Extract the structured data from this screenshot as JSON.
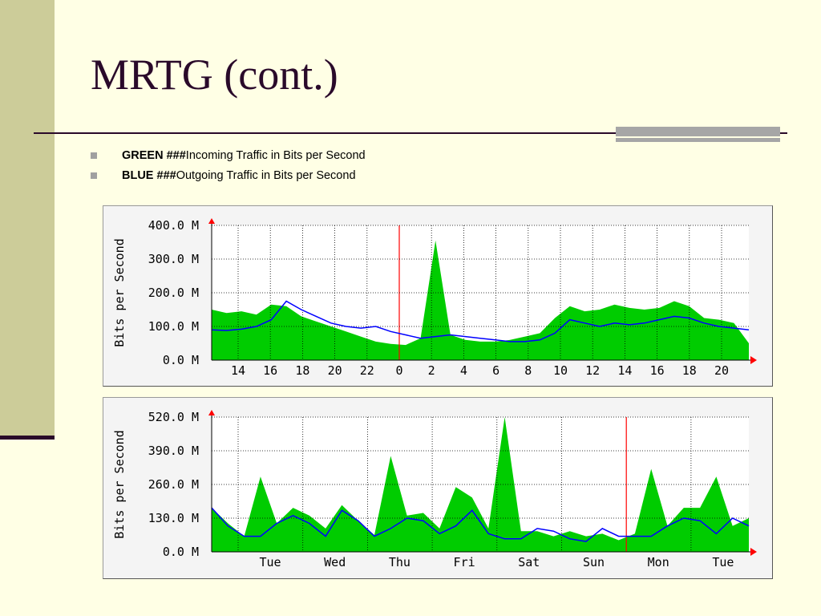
{
  "slide": {
    "title": "MRTG (cont.)",
    "bullets": [
      {
        "bold": "GREEN ###",
        "text": "Incoming Traffic in Bits per Second"
      },
      {
        "bold": "BLUE ###",
        "text": "Outgoing Traffic in Bits per Second"
      }
    ]
  },
  "colors": {
    "incoming": "#00cc00",
    "outgoing": "#0000ff",
    "marker": "#ff0000",
    "grid": "#000000",
    "accent_band": "#cccc99",
    "title_text": "#2a0a2a"
  },
  "chart_data": [
    {
      "type": "area",
      "ylabel": "Bits per Second",
      "yticks": [
        "0.0 M",
        "100.0 M",
        "200.0 M",
        "300.0 M",
        "400.0 M"
      ],
      "ylim": [
        0,
        400
      ],
      "xticks": [
        "14",
        "16",
        "18",
        "20",
        "22",
        "0",
        "2",
        "4",
        "6",
        "8",
        "10",
        "12",
        "14",
        "16",
        "18",
        "20"
      ],
      "marker_at": "0",
      "grid": true,
      "x": [
        13,
        14,
        15,
        16,
        17,
        18,
        19,
        20,
        21,
        22,
        23,
        24,
        25,
        26,
        27,
        28,
        29,
        30,
        31,
        32,
        33,
        34,
        35,
        36,
        37,
        38,
        39,
        40,
        41,
        42,
        43,
        44,
        45,
        46,
        47,
        48,
        49
      ],
      "series": [
        {
          "name": "Incoming",
          "values": [
            150,
            140,
            145,
            135,
            165,
            160,
            130,
            115,
            100,
            85,
            70,
            55,
            48,
            45,
            65,
            355,
            75,
            60,
            55,
            55,
            60,
            70,
            80,
            125,
            160,
            145,
            150,
            165,
            155,
            150,
            155,
            175,
            160,
            125,
            120,
            110,
            50
          ]
        },
        {
          "name": "Outgoing",
          "values": [
            90,
            88,
            92,
            100,
            120,
            175,
            150,
            130,
            110,
            100,
            95,
            100,
            85,
            75,
            65,
            70,
            75,
            70,
            65,
            60,
            55,
            55,
            60,
            80,
            120,
            110,
            100,
            110,
            105,
            110,
            120,
            130,
            125,
            110,
            100,
            95,
            90
          ]
        }
      ]
    },
    {
      "type": "area",
      "ylabel": "Bits per Second",
      "yticks": [
        "0.0 M",
        "130.0 M",
        "260.0 M",
        "390.0 M",
        "520.0 M"
      ],
      "ylim": [
        0,
        520
      ],
      "xticks": [
        "Tue",
        "Wed",
        "Thu",
        "Fri",
        "Sat",
        "Sun",
        "Mon",
        "Tue"
      ],
      "marker_at": "Mon",
      "grid": true,
      "x": [
        0,
        0.25,
        0.5,
        0.75,
        1,
        1.25,
        1.5,
        1.75,
        2,
        2.25,
        2.5,
        2.75,
        3,
        3.25,
        3.5,
        3.75,
        4,
        4.25,
        4.5,
        4.75,
        5,
        5.25,
        5.5,
        5.75,
        6,
        6.25,
        6.5,
        6.75,
        7,
        7.25,
        7.5,
        7.75,
        8,
        8.25
      ],
      "series": [
        {
          "name": "Incoming",
          "values": [
            170,
            110,
            60,
            290,
            110,
            170,
            140,
            90,
            180,
            120,
            65,
            370,
            140,
            150,
            90,
            250,
            210,
            90,
            520,
            80,
            80,
            60,
            80,
            60,
            70,
            45,
            70,
            320,
            100,
            170,
            170,
            290,
            100,
            130
          ]
        },
        {
          "name": "Outgoing",
          "values": [
            170,
            100,
            60,
            60,
            110,
            140,
            110,
            60,
            160,
            120,
            60,
            90,
            130,
            120,
            70,
            100,
            160,
            70,
            50,
            50,
            90,
            80,
            50,
            40,
            90,
            60,
            60,
            60,
            100,
            130,
            120,
            70,
            130,
            100
          ]
        }
      ]
    }
  ]
}
